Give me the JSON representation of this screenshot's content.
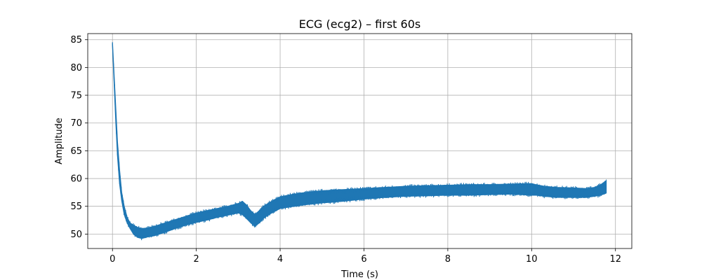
{
  "chart_data": {
    "type": "line",
    "title": "ECG (ecg2) – first 60s",
    "xlabel": "Time (s)",
    "ylabel": "Amplitude",
    "xlim": [
      -0.59,
      12.39
    ],
    "ylim": [
      47.4,
      86.1
    ],
    "xticks": [
      0,
      2,
      4,
      6,
      8,
      10,
      12
    ],
    "yticks": [
      50,
      55,
      60,
      65,
      70,
      75,
      80,
      85
    ],
    "grid": true,
    "series": [
      {
        "color": "#1f77b4",
        "x": [
          0.0,
          0.04,
          0.08,
          0.12,
          0.17,
          0.22,
          0.28,
          0.35,
          0.42,
          0.5,
          0.6,
          0.7,
          0.85,
          1.0,
          1.25,
          1.5,
          1.75,
          2.0,
          2.25,
          2.5,
          2.75,
          3.0,
          3.1,
          3.2,
          3.3,
          3.4,
          3.5,
          3.6,
          3.75,
          3.9,
          4.0,
          4.25,
          4.5,
          4.75,
          5.0,
          5.5,
          6.0,
          6.5,
          7.0,
          7.5,
          8.0,
          8.5,
          9.0,
          9.5,
          10.0,
          10.1,
          10.3,
          10.6,
          11.0,
          11.3,
          11.5,
          11.65,
          11.78
        ],
        "y_low": [
          84.0,
          77.0,
          70.0,
          64.0,
          59.0,
          56.0,
          53.5,
          52.0,
          51.0,
          50.0,
          49.4,
          49.2,
          49.5,
          49.7,
          50.3,
          51.0,
          51.6,
          52.1,
          52.5,
          53.0,
          53.4,
          53.8,
          53.5,
          52.8,
          52.0,
          51.4,
          52.0,
          52.8,
          53.6,
          54.2,
          54.6,
          54.9,
          55.2,
          55.4,
          55.6,
          55.9,
          56.3,
          56.6,
          56.8,
          56.9,
          57.0,
          57.0,
          57.1,
          57.2,
          57.0,
          57.0,
          56.8,
          56.6,
          56.6,
          56.6,
          56.8,
          57.0,
          57.4
        ],
        "y_high": [
          84.5,
          78.5,
          72.5,
          66.5,
          61.5,
          57.5,
          55.0,
          53.0,
          52.0,
          51.6,
          51.2,
          51.0,
          51.1,
          51.4,
          52.0,
          52.6,
          53.2,
          53.8,
          54.2,
          54.6,
          55.0,
          55.5,
          55.9,
          55.2,
          54.2,
          53.5,
          54.2,
          55.0,
          55.7,
          56.3,
          56.7,
          57.1,
          57.4,
          57.6,
          57.8,
          58.0,
          58.2,
          58.4,
          58.6,
          58.7,
          58.8,
          58.9,
          58.9,
          59.0,
          59.1,
          58.9,
          58.6,
          58.4,
          58.3,
          58.2,
          58.4,
          58.9,
          59.6
        ]
      }
    ]
  }
}
